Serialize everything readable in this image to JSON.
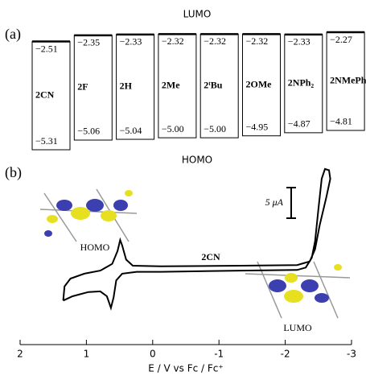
{
  "chart_data": [
    {
      "type": "energy-level",
      "panel_label": "(a)",
      "categories": [
        "2CN",
        "2F",
        "2H",
        "2Me",
        "2ᵗBu",
        "2OMe",
        "2NPh₂",
        "2NMePh"
      ],
      "series": [
        {
          "name": "LUMO",
          "values": [
            -2.51,
            -2.35,
            -2.33,
            -2.32,
            -2.32,
            -2.32,
            -2.33,
            -2.27
          ],
          "value_labels": [
            "−2.51",
            "−2.35",
            "−2.33",
            "−2.32",
            "−2.32",
            "−2.32",
            "−2.33",
            "−2.27"
          ]
        },
        {
          "name": "HOMO",
          "values": [
            -5.31,
            -5.06,
            -5.04,
            -5.0,
            -5.0,
            -4.95,
            -4.87,
            -4.81
          ],
          "value_labels": [
            "−5.31",
            "−5.06",
            "−5.04",
            "−5.00",
            "−5.00",
            "−4.95",
            "−4.87",
            "−4.81"
          ]
        }
      ]
    },
    {
      "type": "line",
      "panel_label": "(b)",
      "xlabel": "E / V  vs Fc / Fc⁺",
      "xlim": [
        2,
        -3
      ],
      "xticks": [
        2,
        1,
        0,
        -1,
        -2,
        -3
      ],
      "scale_bar": {
        "value": 5,
        "label": "5 μA"
      },
      "annotations": [
        "HOMO",
        "LUMO"
      ],
      "series": [
        {
          "name": "2CN",
          "color": "#000000",
          "x": [
            1.35,
            1.21,
            0.97,
            0.79,
            0.69,
            0.63,
            0.59,
            0.55,
            0.46,
            0.24,
            -0.12,
            -1.33,
            -2.18,
            -2.31,
            -2.4,
            -2.45,
            -2.5,
            -2.55,
            -2.6,
            -2.66,
            -2.68,
            -2.62,
            -2.52,
            -2.45,
            -2.37,
            -2.18,
            -1.33,
            -0.12,
            0.3,
            0.4,
            0.46,
            0.49,
            0.53,
            0.61,
            0.79,
            1.03,
            1.24,
            1.33,
            1.35
          ],
          "values": [
            -5.7,
            -5.0,
            -4.3,
            -4.2,
            -5.0,
            -6.9,
            -5.2,
            -2.4,
            -1.3,
            -1.0,
            -1.0,
            -0.8,
            -0.7,
            -0.3,
            1.3,
            4.0,
            9.2,
            14.2,
            15.8,
            15.6,
            14.2,
            11.2,
            6.6,
            2.7,
            0.7,
            0.1,
            0.0,
            -0.1,
            0.0,
            1.0,
            3.3,
            4.2,
            2.4,
            0.3,
            -0.8,
            -1.3,
            -2.1,
            -3.4,
            -5.7
          ]
        }
      ]
    }
  ]
}
